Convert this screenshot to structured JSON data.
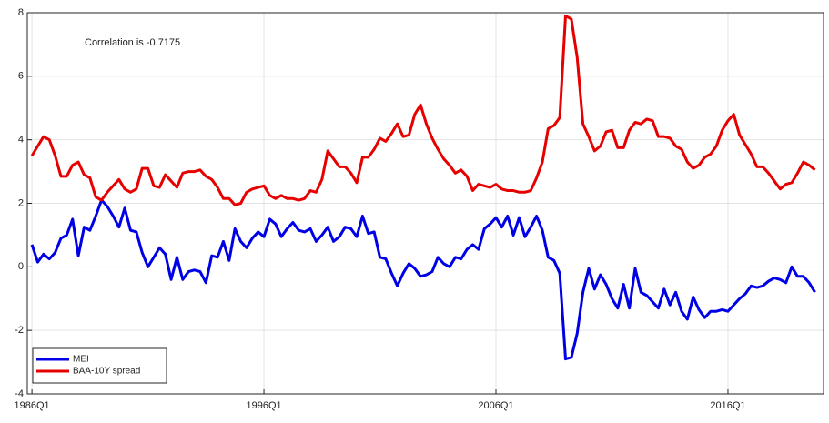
{
  "chart_data": {
    "type": "line",
    "annotation": "Correlation is -0.7175",
    "x": [
      1986,
      1986.25,
      1986.5,
      1986.75,
      1987,
      1987.25,
      1987.5,
      1987.75,
      1988,
      1988.25,
      1988.5,
      1988.75,
      1989,
      1989.25,
      1989.5,
      1989.75,
      1990,
      1990.25,
      1990.5,
      1990.75,
      1991,
      1991.25,
      1991.5,
      1991.75,
      1992,
      1992.25,
      1992.5,
      1992.75,
      1993,
      1993.25,
      1993.5,
      1993.75,
      1994,
      1994.25,
      1994.5,
      1994.75,
      1995,
      1995.25,
      1995.5,
      1995.75,
      1996,
      1996.25,
      1996.5,
      1996.75,
      1997,
      1997.25,
      1997.5,
      1997.75,
      1998,
      1998.25,
      1998.5,
      1998.75,
      1999,
      1999.25,
      1999.5,
      1999.75,
      2000,
      2000.25,
      2000.5,
      2000.75,
      2001,
      2001.25,
      2001.5,
      2001.75,
      2002,
      2002.25,
      2002.5,
      2002.75,
      2003,
      2003.25,
      2003.5,
      2003.75,
      2004,
      2004.25,
      2004.5,
      2004.75,
      2005,
      2005.25,
      2005.5,
      2005.75,
      2006,
      2006.25,
      2006.5,
      2006.75,
      2007,
      2007.25,
      2007.5,
      2007.75,
      2008,
      2008.25,
      2008.5,
      2008.75,
      2009,
      2009.25,
      2009.5,
      2009.75,
      2010,
      2010.25,
      2010.5,
      2010.75,
      2011,
      2011.25,
      2011.5,
      2011.75,
      2012,
      2012.25,
      2012.5,
      2012.75,
      2013,
      2013.25,
      2013.5,
      2013.75,
      2014,
      2014.25,
      2014.5,
      2014.75,
      2015,
      2015.25,
      2015.5,
      2015.75,
      2016,
      2016.25,
      2016.5,
      2016.75,
      2017,
      2017.25,
      2017.5,
      2017.75,
      2018,
      2018.25,
      2018.5,
      2018.75,
      2019,
      2019.25,
      2019.5,
      2019.75
    ],
    "series": [
      {
        "name": "MEI",
        "color": "#0000e6",
        "values": [
          0.7,
          0.15,
          0.4,
          0.25,
          0.45,
          0.9,
          1.0,
          1.5,
          0.35,
          1.25,
          1.15,
          1.6,
          2.1,
          1.9,
          1.6,
          1.25,
          1.85,
          1.15,
          1.1,
          0.45,
          0.0,
          0.3,
          0.6,
          0.4,
          -0.4,
          0.3,
          -0.4,
          -0.15,
          -0.1,
          -0.15,
          -0.5,
          0.35,
          0.3,
          0.8,
          0.2,
          1.2,
          0.8,
          0.6,
          0.9,
          1.1,
          0.95,
          1.5,
          1.35,
          0.95,
          1.2,
          1.4,
          1.15,
          1.1,
          1.2,
          0.8,
          1.0,
          1.25,
          0.8,
          0.95,
          1.25,
          1.2,
          0.95,
          1.6,
          1.05,
          1.1,
          0.3,
          0.25,
          -0.2,
          -0.6,
          -0.2,
          0.1,
          -0.05,
          -0.3,
          -0.25,
          -0.15,
          0.3,
          0.1,
          0.0,
          0.3,
          0.25,
          0.55,
          0.7,
          0.55,
          1.2,
          1.35,
          1.55,
          1.25,
          1.6,
          1.0,
          1.55,
          0.95,
          1.25,
          1.6,
          1.15,
          0.3,
          0.2,
          -0.2,
          -2.9,
          -2.85,
          -2.1,
          -0.8,
          -0.05,
          -0.7,
          -0.25,
          -0.55,
          -1.0,
          -1.3,
          -0.55,
          -1.3,
          -0.05,
          -0.8,
          -0.9,
          -1.1,
          -1.3,
          -0.7,
          -1.2,
          -0.8,
          -1.4,
          -1.65,
          -0.95,
          -1.35,
          -1.6,
          -1.4,
          -1.4,
          -1.35,
          -1.4,
          -1.2,
          -1.0,
          -0.85,
          -0.6,
          -0.65,
          -0.6,
          -0.45,
          -0.35,
          -0.4,
          -0.5,
          0.0,
          -0.3,
          -0.3,
          -0.5,
          -0.8
        ]
      },
      {
        "name": "BAA-10Y spread",
        "color": "#e60000",
        "values": [
          3.5,
          3.8,
          4.1,
          4.0,
          3.5,
          2.85,
          2.85,
          3.2,
          3.3,
          2.9,
          2.8,
          2.2,
          2.1,
          2.35,
          2.55,
          2.75,
          2.45,
          2.35,
          2.45,
          3.1,
          3.1,
          2.55,
          2.5,
          2.9,
          2.7,
          2.5,
          2.95,
          3.0,
          3.0,
          3.05,
          2.85,
          2.75,
          2.5,
          2.15,
          2.15,
          1.95,
          2.0,
          2.35,
          2.45,
          2.5,
          2.55,
          2.25,
          2.15,
          2.25,
          2.15,
          2.15,
          2.1,
          2.15,
          2.4,
          2.35,
          2.75,
          3.65,
          3.4,
          3.15,
          3.15,
          2.95,
          2.65,
          3.45,
          3.45,
          3.7,
          4.05,
          3.95,
          4.2,
          4.5,
          4.1,
          4.15,
          4.8,
          5.1,
          4.5,
          4.05,
          3.7,
          3.4,
          3.2,
          2.95,
          3.05,
          2.85,
          2.4,
          2.6,
          2.55,
          2.5,
          2.6,
          2.45,
          2.4,
          2.4,
          2.35,
          2.35,
          2.4,
          2.8,
          3.3,
          4.35,
          4.45,
          4.7,
          7.9,
          7.8,
          6.6,
          4.5,
          4.1,
          3.65,
          3.8,
          4.25,
          4.3,
          3.75,
          3.75,
          4.3,
          4.55,
          4.5,
          4.65,
          4.6,
          4.1,
          4.1,
          4.05,
          3.8,
          3.7,
          3.3,
          3.1,
          3.2,
          3.45,
          3.55,
          3.8,
          4.3,
          4.6,
          4.8,
          4.15,
          3.85,
          3.55,
          3.15,
          3.15,
          2.95,
          2.7,
          2.45,
          2.6,
          2.65,
          2.95,
          3.3,
          3.2,
          3.05
        ]
      }
    ],
    "xlim": [
      1985.8,
      2020.12
    ],
    "xticks": [
      {
        "value": 1986,
        "label": "1986Q1"
      },
      {
        "value": 1996,
        "label": "1996Q1"
      },
      {
        "value": 2006,
        "label": "2006Q1"
      },
      {
        "value": 2016,
        "label": "2016Q1"
      }
    ],
    "ylim": [
      -4,
      8
    ],
    "yticks": [
      -4,
      -2,
      0,
      2,
      4,
      6,
      8
    ],
    "grid": true,
    "legend": "bottom-left"
  }
}
